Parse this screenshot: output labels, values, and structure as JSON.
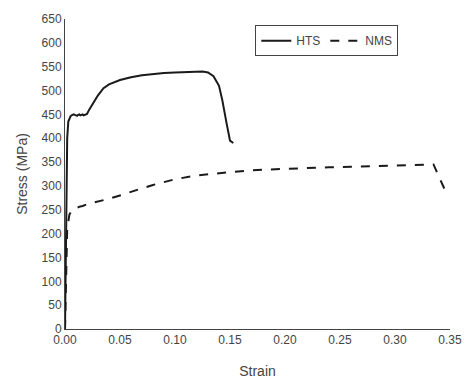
{
  "chart_data": {
    "type": "line",
    "xlabel": "Strain",
    "ylabel": "Stress (MPa)",
    "xlim": [
      0,
      0.35
    ],
    "ylim": [
      0,
      650
    ],
    "xticks": [
      {
        "value": 0,
        "label": "0.00"
      },
      0.05,
      {
        "value": 0.1,
        "label": "0.10"
      },
      0.15,
      {
        "value": 0.2,
        "label": "0.20"
      },
      0.25,
      {
        "value": 0.3,
        "label": "0.30"
      },
      0.35
    ],
    "yticks": [
      0,
      50,
      100,
      150,
      200,
      250,
      300,
      350,
      400,
      450,
      500,
      550,
      600,
      650
    ],
    "grid": false,
    "legend": "upper center",
    "series": [
      {
        "name": "HTS",
        "color": "#1a1a1a",
        "line_style": "solid",
        "x": [
          0.0,
          0.0005,
          0.001,
          0.0015,
          0.002,
          0.003,
          0.004,
          0.005,
          0.006,
          0.007,
          0.008,
          0.009,
          0.01,
          0.011,
          0.012,
          0.013,
          0.014,
          0.015,
          0.016,
          0.017,
          0.018,
          0.019,
          0.02,
          0.022,
          0.024,
          0.026,
          0.028,
          0.03,
          0.035,
          0.04,
          0.05,
          0.06,
          0.07,
          0.08,
          0.09,
          0.1,
          0.11,
          0.12,
          0.125,
          0.13,
          0.135,
          0.14,
          0.143,
          0.147,
          0.15,
          0.153
        ],
        "values": [
          0,
          100,
          200,
          320,
          400,
          435,
          443,
          446,
          448,
          449,
          450,
          449,
          448,
          447,
          449,
          450,
          448,
          449,
          450,
          448,
          449,
          450,
          451,
          460,
          468,
          476,
          483,
          490,
          505,
          513,
          522,
          528,
          532,
          535,
          537,
          538,
          539,
          540,
          540,
          538,
          530,
          510,
          480,
          430,
          395,
          390
        ]
      },
      {
        "name": "NMS",
        "color": "#1a1a1a",
        "line_style": "dashed",
        "x": [
          0.0,
          0.001,
          0.002,
          0.004,
          0.006,
          0.008,
          0.01,
          0.012,
          0.014,
          0.016,
          0.018,
          0.02,
          0.022,
          0.024,
          0.026,
          0.028,
          0.03,
          0.04,
          0.05,
          0.06,
          0.07,
          0.08,
          0.09,
          0.1,
          0.12,
          0.14,
          0.16,
          0.18,
          0.2,
          0.22,
          0.24,
          0.26,
          0.28,
          0.3,
          0.32,
          0.335,
          0.348
        ],
        "values": [
          0,
          100,
          210,
          240,
          248,
          252,
          254,
          256,
          257,
          258,
          260,
          261,
          263,
          264,
          265,
          266,
          267,
          273,
          280,
          288,
          295,
          302,
          308,
          314,
          322,
          327,
          331,
          334,
          336,
          338,
          339,
          340,
          341,
          342,
          344,
          345,
          278
        ]
      }
    ]
  }
}
